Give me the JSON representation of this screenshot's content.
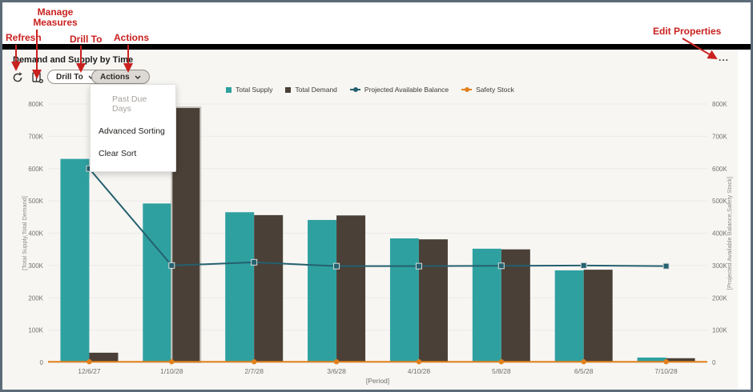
{
  "annotations": {
    "refresh": "Refresh",
    "manage_measures": "Manage Measures",
    "drill_to": "Drill To",
    "actions": "Actions",
    "edit_properties": "Edit Properties",
    "color": "#c9211f"
  },
  "header": {
    "title": "Demand and Supply by Time"
  },
  "toolbar": {
    "drill_to_label": "Drill To",
    "actions_label": "Actions",
    "overflow_label": "..."
  },
  "menu": {
    "items": [
      {
        "label": "Past Due Days",
        "disabled": true
      },
      {
        "label": "Advanced Sorting",
        "disabled": false
      },
      {
        "label": "Clear Sort",
        "disabled": false
      }
    ]
  },
  "chart_data": {
    "type": "combo",
    "categories": [
      "12/6/27",
      "1/10/28",
      "2/7/28",
      "3/6/28",
      "4/10/28",
      "5/8/28",
      "6/5/28",
      "7/10/28"
    ],
    "series": [
      {
        "name": "Total Supply",
        "type": "bar",
        "color": "#2fa0a0",
        "values": [
          630000,
          492000,
          465000,
          441000,
          384000,
          352000,
          285000,
          15000
        ]
      },
      {
        "name": "Total Demand",
        "type": "bar",
        "color": "#4a4037",
        "selected_index": 1,
        "values": [
          30000,
          790000,
          456000,
          455000,
          381000,
          350000,
          287000,
          13000
        ]
      },
      {
        "name": "Projected Available Balance",
        "type": "line",
        "marker": "square",
        "color": "#24606f",
        "values": [
          600000,
          300000,
          310000,
          298000,
          298000,
          299000,
          300000,
          298000
        ]
      },
      {
        "name": "Safety Stock",
        "type": "line",
        "marker": "circle",
        "color": "#e2801c",
        "values": [
          2000,
          2000,
          2000,
          2000,
          2000,
          2000,
          2000,
          2000
        ]
      }
    ],
    "y_left": {
      "title": "[Total Supply,Total Demand]",
      "min": 0,
      "max": 800000,
      "tick_step": 100000,
      "tick_labels": [
        "0",
        "100K",
        "200K",
        "300K",
        "400K",
        "500K",
        "600K",
        "700K",
        "800K"
      ]
    },
    "y_right": {
      "title": "[Projected Available Balance,Safety Stock]",
      "min": 0,
      "max": 800000,
      "tick_step": 100000,
      "tick_labels": [
        "0",
        "100K",
        "200K",
        "300K",
        "400K",
        "500K",
        "600K",
        "700K",
        "800K"
      ]
    },
    "x_title": "[Period]",
    "grid": "horizontal",
    "legend_position": "top-center"
  }
}
